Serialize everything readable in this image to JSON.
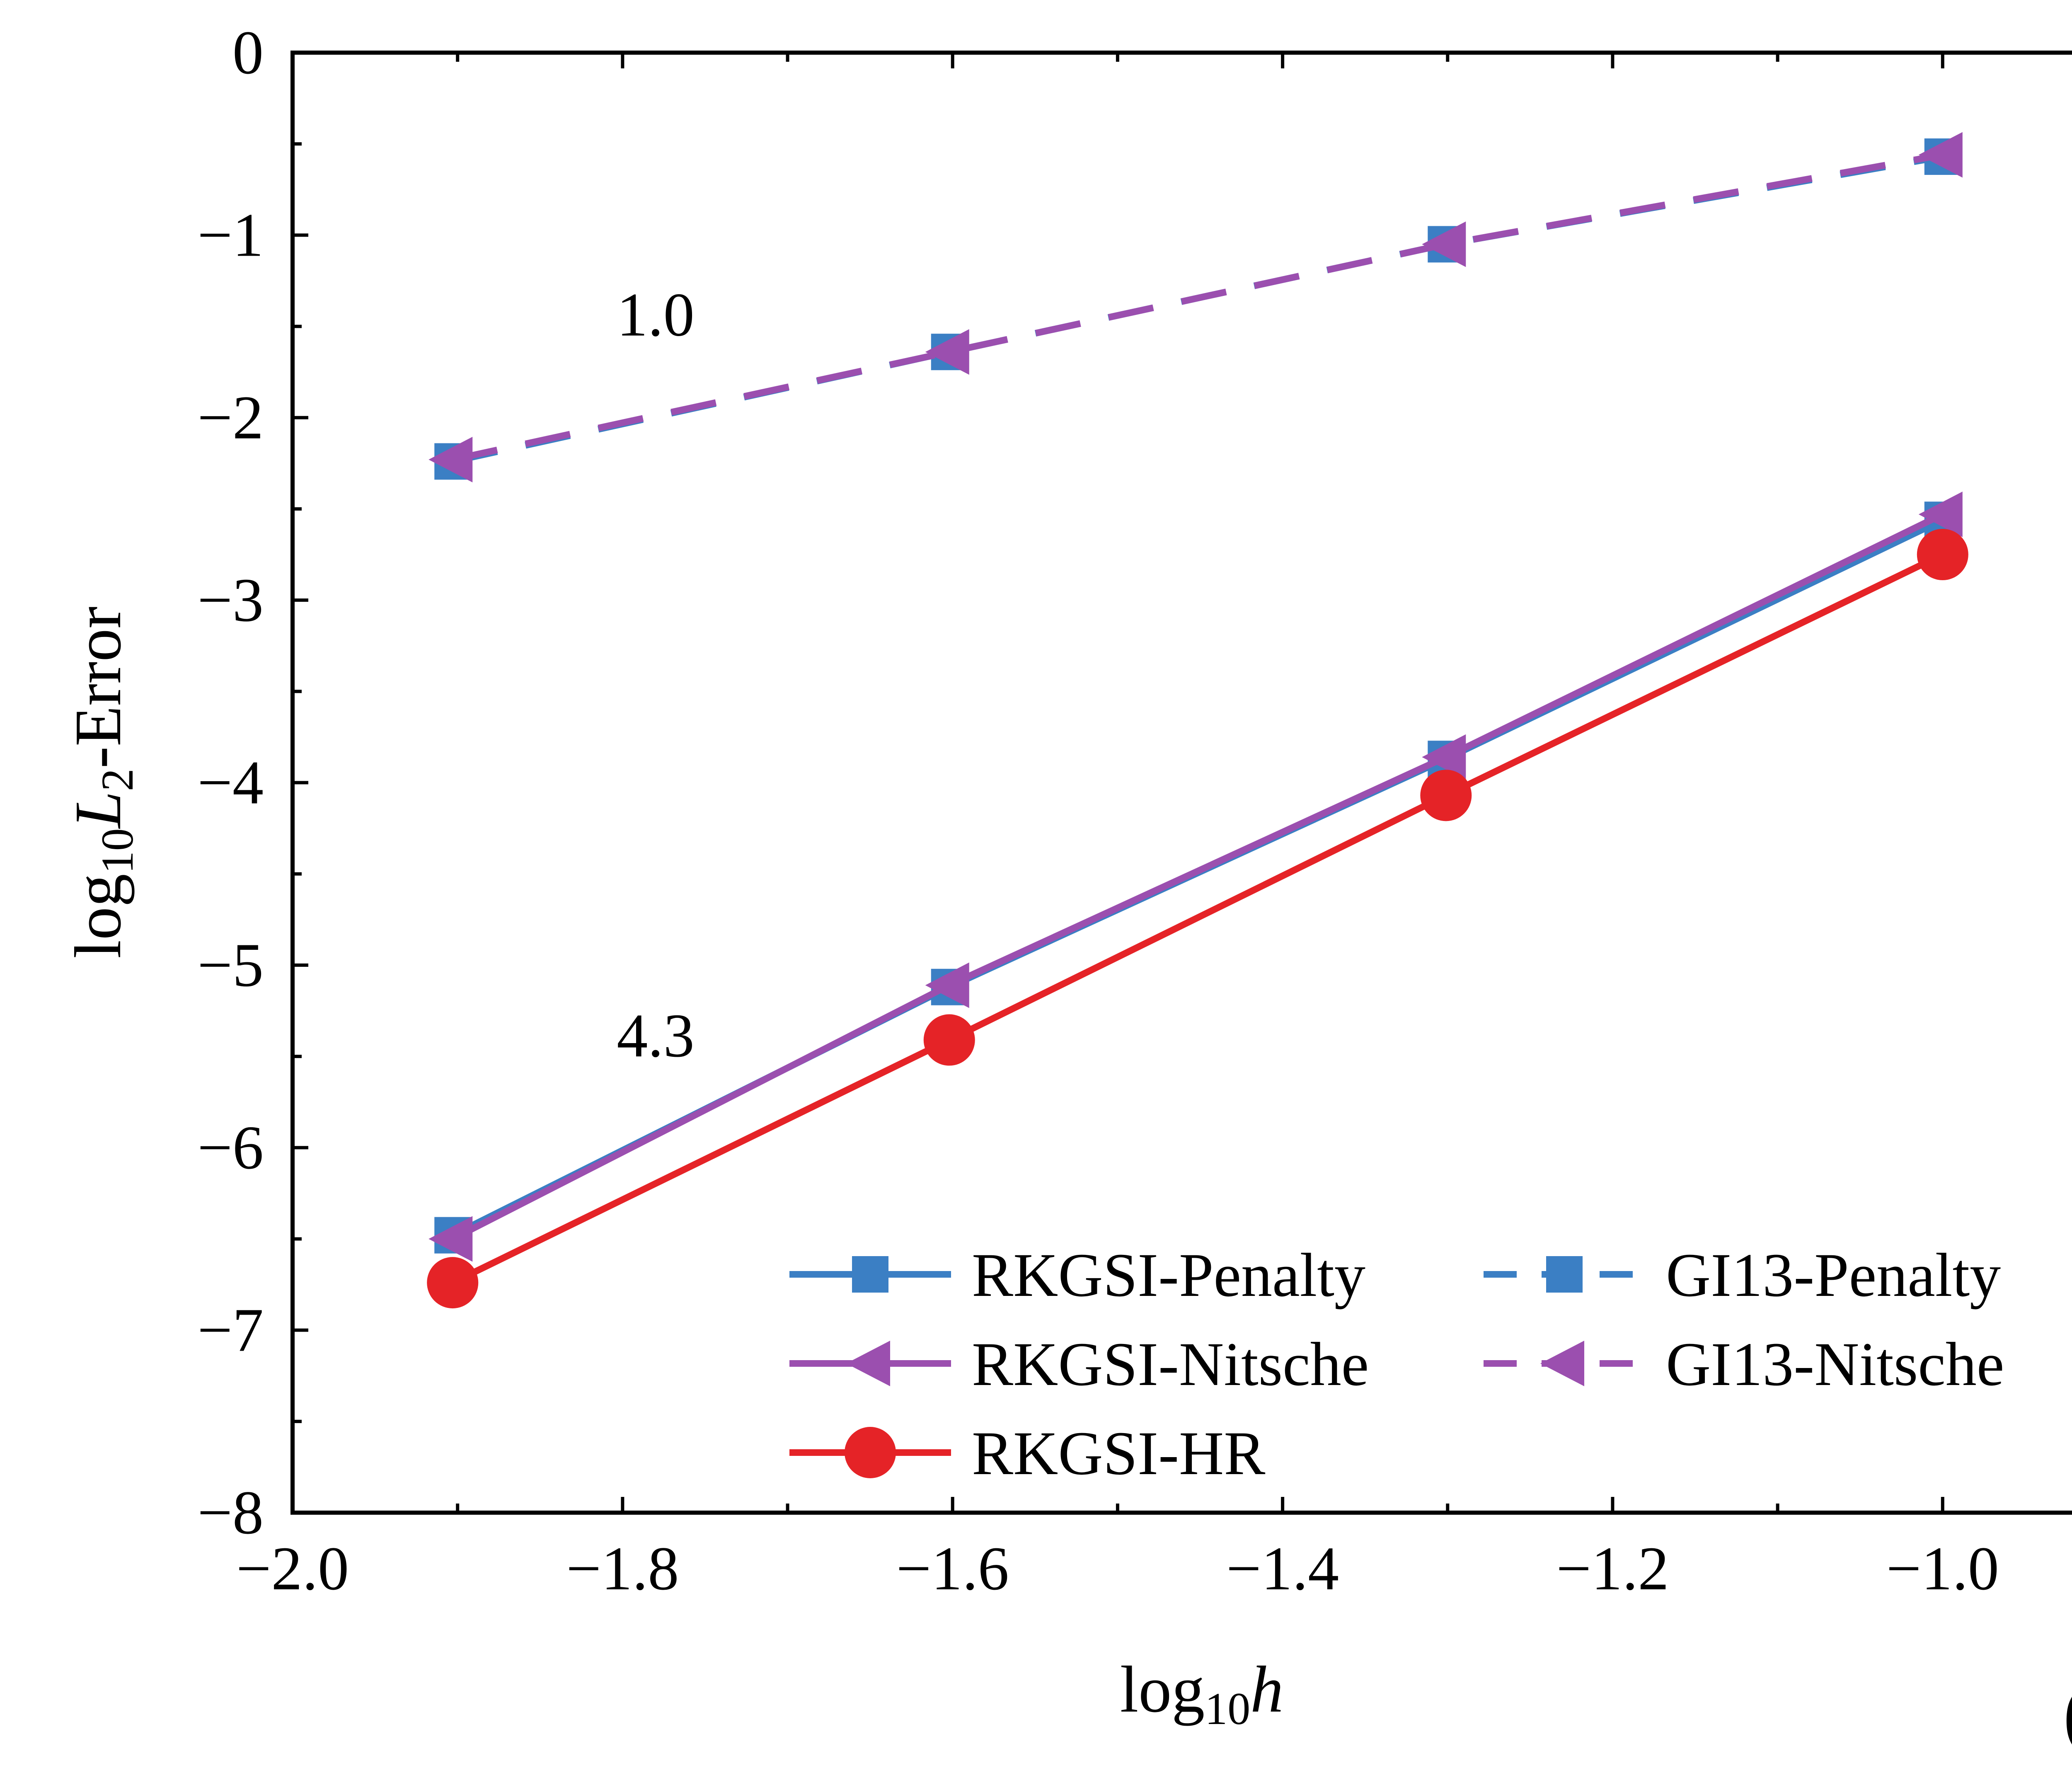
{
  "chart_data": {
    "type": "line",
    "xlabel": "log10h",
    "ylabel": "log10L2-Error",
    "xlim": [
      -2.0,
      -0.9
    ],
    "ylim": [
      -8,
      0
    ],
    "xticks": [
      -2.0,
      -1.8,
      -1.6,
      -1.4,
      -1.2,
      -1.0
    ],
    "xtick_labels": [
      "−2.0",
      "−1.8",
      "−1.6",
      "−1.4",
      "−1.2",
      "−1.0"
    ],
    "yticks": [
      0,
      -1,
      -2,
      -3,
      -4,
      -5,
      -6,
      -7,
      -8
    ],
    "ytick_labels": [
      "0",
      "−1",
      "−2",
      "−3",
      "−4",
      "−5",
      "−6",
      "−7",
      "−8"
    ],
    "grid": false,
    "legend_position": "bottom-right",
    "panel_label": "(a)",
    "x": [
      -1.903,
      -1.602,
      -1.301,
      -1.0
    ],
    "series": [
      {
        "name": "RKGSI-Penalty",
        "color": "#3b7fc4",
        "marker": "square",
        "dash": "solid",
        "values": [
          -6.48,
          -5.12,
          -3.87,
          -2.56
        ]
      },
      {
        "name": "RKGSI-Nitsche",
        "color": "#9b4faf",
        "marker": "triangle-left",
        "dash": "solid",
        "values": [
          -6.5,
          -5.11,
          -3.86,
          -2.53
        ]
      },
      {
        "name": "RKGSI-HR",
        "color": "#e52327",
        "marker": "circle",
        "dash": "solid",
        "values": [
          -6.74,
          -5.41,
          -4.07,
          -2.75
        ]
      },
      {
        "name": "GI13-Penalty",
        "color": "#3b7fc4",
        "marker": "square",
        "dash": "dashed",
        "values": [
          -2.24,
          -1.64,
          -1.05,
          -0.57
        ]
      },
      {
        "name": "GI13-Nitsche",
        "color": "#9b4faf",
        "marker": "triangle-left",
        "dash": "dashed",
        "values": [
          -2.23,
          -1.64,
          -1.05,
          -0.56
        ]
      }
    ],
    "annotations": [
      {
        "text": "1.0",
        "x": -1.78,
        "y": -1.55
      },
      {
        "text": "4.3",
        "x": -1.78,
        "y": -5.5
      }
    ]
  }
}
